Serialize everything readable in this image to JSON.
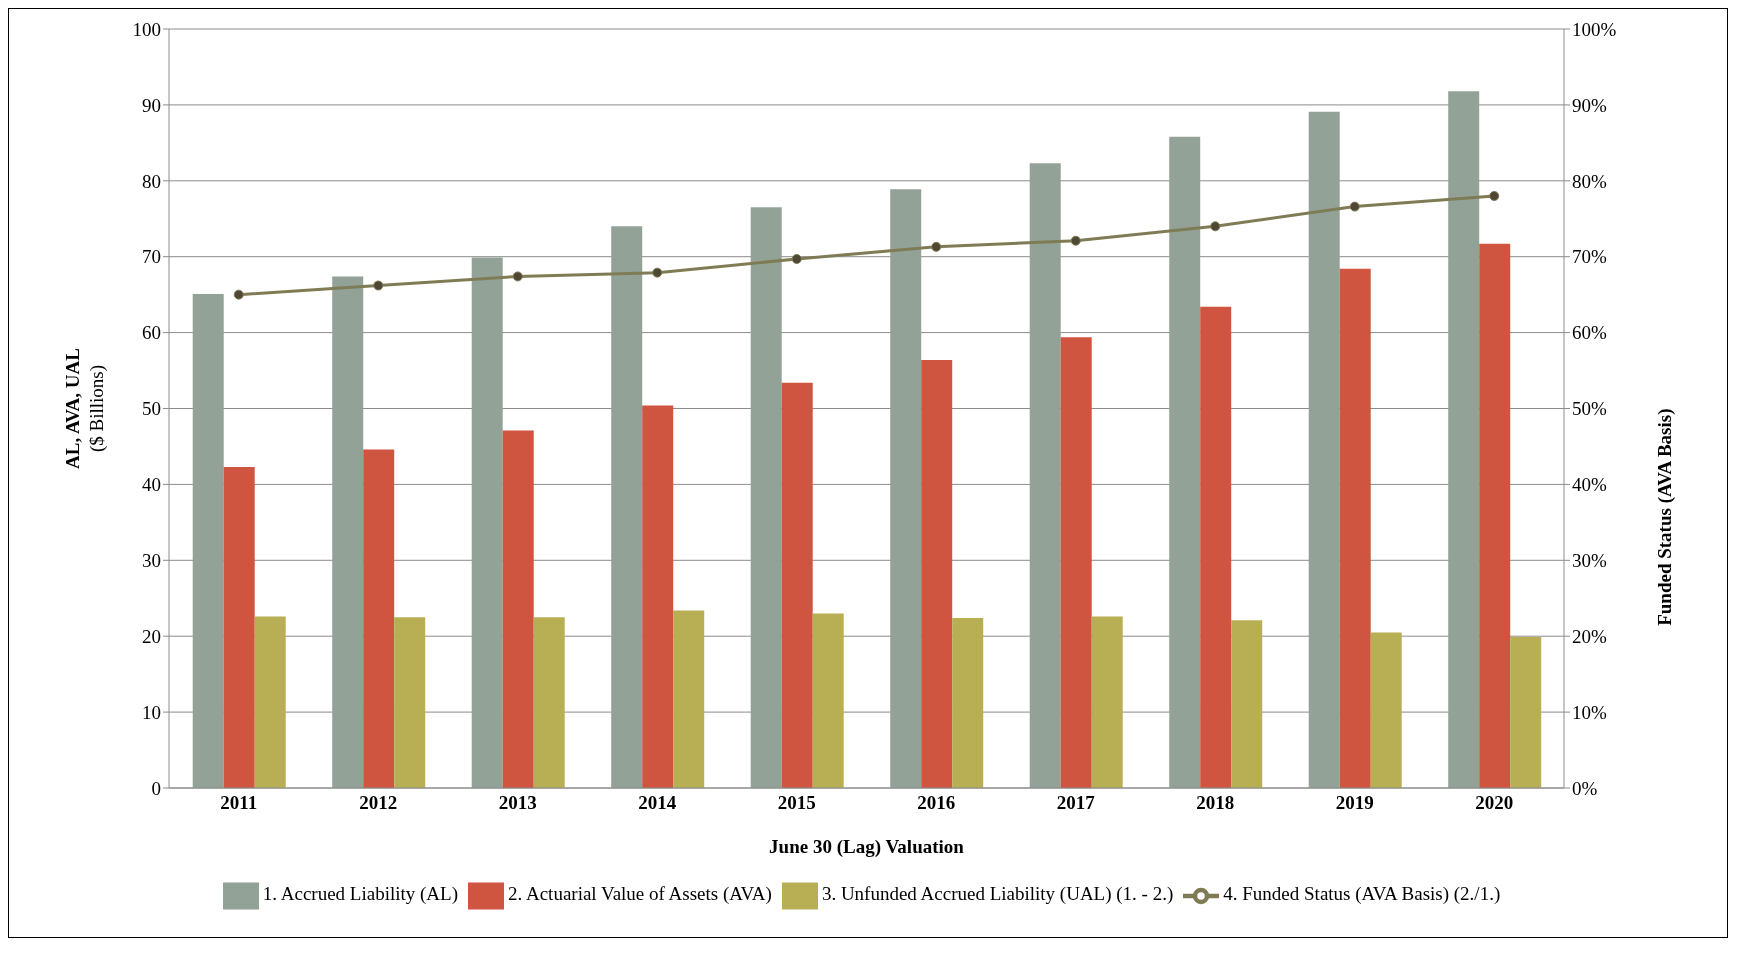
{
  "chart_data": {
    "type": "bar",
    "xlabel": "June 30 (Lag) Valuation",
    "ylabel": "AL, AVA, UAL\n($ Billions)",
    "y2label": "Funded Status (AVA Basis)",
    "categories": [
      "2011",
      "2012",
      "2013",
      "2014",
      "2015",
      "2016",
      "2017",
      "2018",
      "2019",
      "2020"
    ],
    "series": [
      {
        "name": "1. Accrued Liability (AL)",
        "color": "#92a297",
        "values": [
          65.1,
          67.4,
          69.9,
          74.0,
          76.5,
          78.9,
          82.3,
          85.8,
          89.1,
          91.8
        ]
      },
      {
        "name": "2. Actuarial Value of Assets (AVA)",
        "color": "#cf5540",
        "values": [
          42.3,
          44.6,
          47.1,
          50.4,
          53.4,
          56.4,
          59.4,
          63.4,
          68.4,
          71.7
        ]
      },
      {
        "name": "3. Unfunded Accrued Liability (UAL) (1. - 2.)",
        "color": "#b8ae54",
        "values": [
          22.6,
          22.5,
          22.5,
          23.4,
          23.0,
          22.4,
          22.6,
          22.1,
          20.5,
          19.9
        ]
      },
      {
        "name": "4. Funded Status (AVA Basis) (2./1.)",
        "type": "line",
        "axis": "y2",
        "color": "#7f7c55",
        "marker": "circle",
        "values": [
          65.0,
          66.2,
          67.4,
          67.9,
          69.7,
          71.3,
          72.1,
          74.0,
          76.6,
          78.0
        ]
      }
    ],
    "ylim": [
      0,
      100
    ],
    "yticks": [
      0,
      10,
      20,
      30,
      40,
      50,
      60,
      70,
      80,
      90,
      100
    ],
    "y2lim": [
      0,
      100
    ],
    "y2ticks": [
      {
        "value": 0,
        "label": "0%"
      },
      {
        "value": 10,
        "label": "10%"
      },
      {
        "value": 20,
        "label": "20%"
      },
      {
        "value": 30,
        "label": "30%"
      },
      {
        "value": 40,
        "label": "40%"
      },
      {
        "value": 50,
        "label": "50%"
      },
      {
        "value": 60,
        "label": "60%"
      },
      {
        "value": 70,
        "label": "70%"
      },
      {
        "value": 80,
        "label": "80%"
      },
      {
        "value": 90,
        "label": "90%"
      },
      {
        "value": 100,
        "label": "100%"
      }
    ],
    "grid": "y",
    "legend": "bottom"
  }
}
